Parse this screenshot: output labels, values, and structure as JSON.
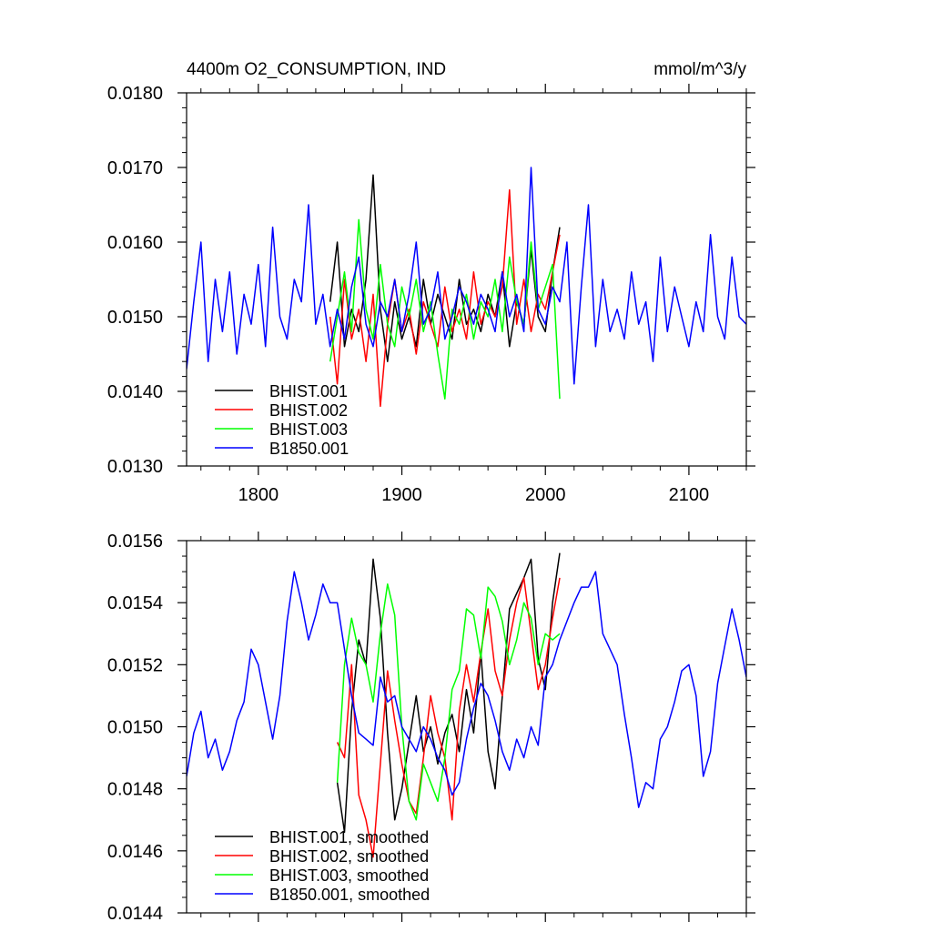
{
  "chart_data": [
    {
      "type": "line",
      "title": "4400m O2_CONSUMPTION, IND",
      "units": "mmol/m^3/y",
      "xlim": [
        1750,
        2140
      ],
      "ylim": [
        0.013,
        0.018
      ],
      "x_ticks": [
        1800,
        1900,
        2000,
        2100
      ],
      "x_tick_labels": [
        "1800",
        "1900",
        "2000",
        "2100"
      ],
      "y_ticks": [
        0.013,
        0.014,
        0.015,
        0.016,
        0.017,
        0.018
      ],
      "y_tick_labels": [
        "0.0130",
        "0.0140",
        "0.0150",
        "0.0160",
        "0.0170",
        "0.0180"
      ],
      "grid": false,
      "legend_position": "bottom-left",
      "series": [
        {
          "name": "BHIST.001",
          "color": "#000000",
          "x": [
            1850,
            1855,
            1860,
            1865,
            1870,
            1875,
            1880,
            1885,
            1890,
            1895,
            1900,
            1905,
            1910,
            1915,
            1920,
            1925,
            1930,
            1935,
            1940,
            1945,
            1950,
            1955,
            1960,
            1965,
            1970,
            1975,
            1980,
            1985,
            1990,
            1995,
            2000,
            2005,
            2010
          ],
          "values": [
            0.0152,
            0.016,
            0.0146,
            0.0151,
            0.0148,
            0.0155,
            0.0169,
            0.0151,
            0.0144,
            0.0152,
            0.0147,
            0.015,
            0.0146,
            0.0155,
            0.0149,
            0.0153,
            0.015,
            0.0147,
            0.0155,
            0.0149,
            0.0151,
            0.0148,
            0.0153,
            0.015,
            0.0156,
            0.0146,
            0.0152,
            0.0149,
            0.0159,
            0.015,
            0.0148,
            0.0156,
            0.0162
          ]
        },
        {
          "name": "BHIST.002",
          "color": "#ff0000",
          "x": [
            1850,
            1855,
            1860,
            1865,
            1870,
            1875,
            1880,
            1885,
            1890,
            1895,
            1900,
            1905,
            1910,
            1915,
            1920,
            1925,
            1930,
            1935,
            1940,
            1945,
            1950,
            1955,
            1960,
            1965,
            1970,
            1975,
            1980,
            1985,
            1990,
            1995,
            2000,
            2005,
            2010
          ],
          "values": [
            0.015,
            0.0141,
            0.0155,
            0.0147,
            0.0151,
            0.0144,
            0.0153,
            0.0138,
            0.0149,
            0.0155,
            0.0148,
            0.0151,
            0.0145,
            0.0152,
            0.0149,
            0.0146,
            0.0154,
            0.0148,
            0.0151,
            0.0147,
            0.0156,
            0.0149,
            0.0152,
            0.015,
            0.0154,
            0.0167,
            0.0149,
            0.0155,
            0.0148,
            0.0153,
            0.0151,
            0.0156,
            0.0161
          ]
        },
        {
          "name": "BHIST.003",
          "color": "#00ff00",
          "x": [
            1850,
            1855,
            1860,
            1865,
            1870,
            1875,
            1880,
            1885,
            1890,
            1895,
            1900,
            1905,
            1910,
            1915,
            1920,
            1925,
            1930,
            1935,
            1940,
            1945,
            1950,
            1955,
            1960,
            1965,
            1970,
            1975,
            1980,
            1985,
            1990,
            1995,
            2000,
            2005,
            2010
          ],
          "values": [
            0.0144,
            0.015,
            0.0156,
            0.0148,
            0.0163,
            0.0151,
            0.0147,
            0.0157,
            0.0149,
            0.0146,
            0.0154,
            0.015,
            0.0155,
            0.0148,
            0.0152,
            0.0145,
            0.0139,
            0.0151,
            0.0149,
            0.0153,
            0.0147,
            0.0152,
            0.015,
            0.0155,
            0.0148,
            0.0158,
            0.0152,
            0.0149,
            0.016,
            0.0151,
            0.0154,
            0.0157,
            0.0139
          ]
        },
        {
          "name": "B1850.001",
          "color": "#0000ff",
          "x": [
            1750,
            1755,
            1760,
            1765,
            1770,
            1775,
            1780,
            1785,
            1790,
            1795,
            1800,
            1805,
            1810,
            1815,
            1820,
            1825,
            1830,
            1835,
            1840,
            1845,
            1850,
            1855,
            1860,
            1865,
            1870,
            1875,
            1880,
            1885,
            1890,
            1895,
            1900,
            1905,
            1910,
            1915,
            1920,
            1925,
            1930,
            1935,
            1940,
            1945,
            1950,
            1955,
            1960,
            1965,
            1970,
            1975,
            1980,
            1985,
            1990,
            1995,
            2000,
            2005,
            2010,
            2015,
            2020,
            2025,
            2030,
            2035,
            2040,
            2045,
            2050,
            2055,
            2060,
            2065,
            2070,
            2075,
            2080,
            2085,
            2090,
            2095,
            2100,
            2105,
            2110,
            2115,
            2120,
            2125,
            2130,
            2135,
            2140
          ],
          "values": [
            0.0143,
            0.0152,
            0.016,
            0.0144,
            0.0155,
            0.0148,
            0.0156,
            0.0145,
            0.0153,
            0.0149,
            0.0157,
            0.0146,
            0.0162,
            0.015,
            0.0147,
            0.0155,
            0.0152,
            0.0165,
            0.0149,
            0.0153,
            0.0146,
            0.0151,
            0.0147,
            0.0154,
            0.0158,
            0.0149,
            0.0146,
            0.0152,
            0.015,
            0.0155,
            0.0148,
            0.0153,
            0.016,
            0.0149,
            0.0151,
            0.0156,
            0.0147,
            0.015,
            0.0154,
            0.0152,
            0.0149,
            0.0153,
            0.0151,
            0.0148,
            0.0156,
            0.015,
            0.0153,
            0.0148,
            0.017,
            0.0151,
            0.0149,
            0.0154,
            0.0152,
            0.016,
            0.0141,
            0.0154,
            0.0165,
            0.0146,
            0.0155,
            0.0148,
            0.0151,
            0.0147,
            0.0156,
            0.0149,
            0.0152,
            0.0144,
            0.0158,
            0.0148,
            0.0154,
            0.015,
            0.0146,
            0.0152,
            0.0148,
            0.0161,
            0.015,
            0.0147,
            0.0158,
            0.015,
            0.0149
          ]
        }
      ]
    },
    {
      "type": "line",
      "xlim": [
        1750,
        2140
      ],
      "ylim": [
        0.0144,
        0.0156
      ],
      "x_ticks": [
        1800,
        1900,
        2000,
        2100
      ],
      "y_ticks": [
        0.0144,
        0.0146,
        0.0148,
        0.015,
        0.0152,
        0.0154,
        0.0156
      ],
      "y_tick_labels": [
        "0.0144",
        "0.0146",
        "0.0148",
        "0.0150",
        "0.0152",
        "0.0154",
        "0.0156"
      ],
      "grid": false,
      "legend_position": "bottom-left",
      "series": [
        {
          "name": "BHIST.001, smoothed",
          "color": "#000000",
          "x": [
            1855,
            1860,
            1865,
            1870,
            1875,
            1880,
            1885,
            1890,
            1895,
            1900,
            1905,
            1910,
            1915,
            1920,
            1925,
            1930,
            1935,
            1940,
            1945,
            1950,
            1955,
            1960,
            1965,
            1970,
            1975,
            1980,
            1985,
            1990,
            1995,
            2000,
            2005,
            2010
          ],
          "values": [
            0.01482,
            0.01466,
            0.01505,
            0.01528,
            0.0152,
            0.01554,
            0.01535,
            0.01498,
            0.0147,
            0.0148,
            0.01495,
            0.0151,
            0.01492,
            0.015,
            0.01488,
            0.01498,
            0.01504,
            0.01492,
            0.01512,
            0.01498,
            0.01524,
            0.01492,
            0.0148,
            0.0151,
            0.01538,
            0.01543,
            0.01548,
            0.01554,
            0.01522,
            0.01512,
            0.0154,
            0.01556
          ]
        },
        {
          "name": "BHIST.002, smoothed",
          "color": "#ff0000",
          "x": [
            1855,
            1860,
            1865,
            1870,
            1875,
            1880,
            1885,
            1890,
            1895,
            1900,
            1905,
            1910,
            1915,
            1920,
            1925,
            1930,
            1935,
            1940,
            1945,
            1950,
            1955,
            1960,
            1965,
            1970,
            1975,
            1980,
            1985,
            1990,
            1995,
            2000,
            2005,
            2010
          ],
          "values": [
            0.01495,
            0.0149,
            0.0152,
            0.01478,
            0.0147,
            0.01458,
            0.01488,
            0.01518,
            0.01502,
            0.01488,
            0.01476,
            0.01472,
            0.0149,
            0.0151,
            0.01498,
            0.0149,
            0.0147,
            0.01505,
            0.0152,
            0.01508,
            0.01524,
            0.01538,
            0.01518,
            0.0151,
            0.01528,
            0.0154,
            0.01548,
            0.0153,
            0.01512,
            0.0152,
            0.01535,
            0.01548
          ]
        },
        {
          "name": "BHIST.003, smoothed",
          "color": "#00ff00",
          "x": [
            1855,
            1860,
            1865,
            1870,
            1875,
            1880,
            1885,
            1890,
            1895,
            1900,
            1905,
            1910,
            1915,
            1920,
            1925,
            1930,
            1935,
            1940,
            1945,
            1950,
            1955,
            1960,
            1965,
            1970,
            1975,
            1980,
            1985,
            1990,
            1995,
            2000,
            2005,
            2010
          ],
          "values": [
            0.01482,
            0.0152,
            0.01535,
            0.01524,
            0.0152,
            0.01508,
            0.0153,
            0.01546,
            0.01536,
            0.015,
            0.01476,
            0.0147,
            0.01488,
            0.01482,
            0.01476,
            0.0149,
            0.01512,
            0.01518,
            0.01538,
            0.01536,
            0.01522,
            0.01545,
            0.01542,
            0.01534,
            0.0152,
            0.01528,
            0.0154,
            0.01535,
            0.0152,
            0.0153,
            0.01528,
            0.0153
          ]
        },
        {
          "name": "B1850.001, smoothed",
          "color": "#0000ff",
          "x": [
            1750,
            1755,
            1760,
            1765,
            1770,
            1775,
            1780,
            1785,
            1790,
            1795,
            1800,
            1805,
            1810,
            1815,
            1820,
            1825,
            1830,
            1835,
            1840,
            1845,
            1850,
            1855,
            1860,
            1865,
            1870,
            1875,
            1880,
            1885,
            1890,
            1895,
            1900,
            1905,
            1910,
            1915,
            1920,
            1925,
            1930,
            1935,
            1940,
            1945,
            1950,
            1955,
            1960,
            1965,
            1970,
            1975,
            1980,
            1985,
            1990,
            1995,
            2000,
            2005,
            2010,
            2015,
            2020,
            2025,
            2030,
            2035,
            2040,
            2045,
            2050,
            2055,
            2060,
            2065,
            2070,
            2075,
            2080,
            2085,
            2090,
            2095,
            2100,
            2105,
            2110,
            2115,
            2120,
            2125,
            2130,
            2135,
            2140
          ],
          "values": [
            0.01484,
            0.01498,
            0.01505,
            0.0149,
            0.01496,
            0.01486,
            0.01492,
            0.01502,
            0.01508,
            0.01525,
            0.0152,
            0.01508,
            0.01496,
            0.0151,
            0.01534,
            0.0155,
            0.0154,
            0.01528,
            0.01536,
            0.01546,
            0.0154,
            0.0154,
            0.01525,
            0.0151,
            0.01498,
            0.01496,
            0.01494,
            0.01516,
            0.01508,
            0.0151,
            0.015,
            0.01496,
            0.01492,
            0.015,
            0.01496,
            0.0149,
            0.01486,
            0.01478,
            0.01482,
            0.01496,
            0.01506,
            0.01514,
            0.0151,
            0.01502,
            0.01492,
            0.01486,
            0.01496,
            0.0149,
            0.015,
            0.01494,
            0.01516,
            0.0152,
            0.01528,
            0.01534,
            0.0154,
            0.01545,
            0.01545,
            0.0155,
            0.0153,
            0.01525,
            0.0152,
            0.01504,
            0.0149,
            0.01474,
            0.01482,
            0.0148,
            0.01496,
            0.015,
            0.01508,
            0.01518,
            0.0152,
            0.0151,
            0.01484,
            0.01492,
            0.01514,
            0.01526,
            0.01538,
            0.01528,
            0.01516
          ]
        }
      ]
    }
  ]
}
